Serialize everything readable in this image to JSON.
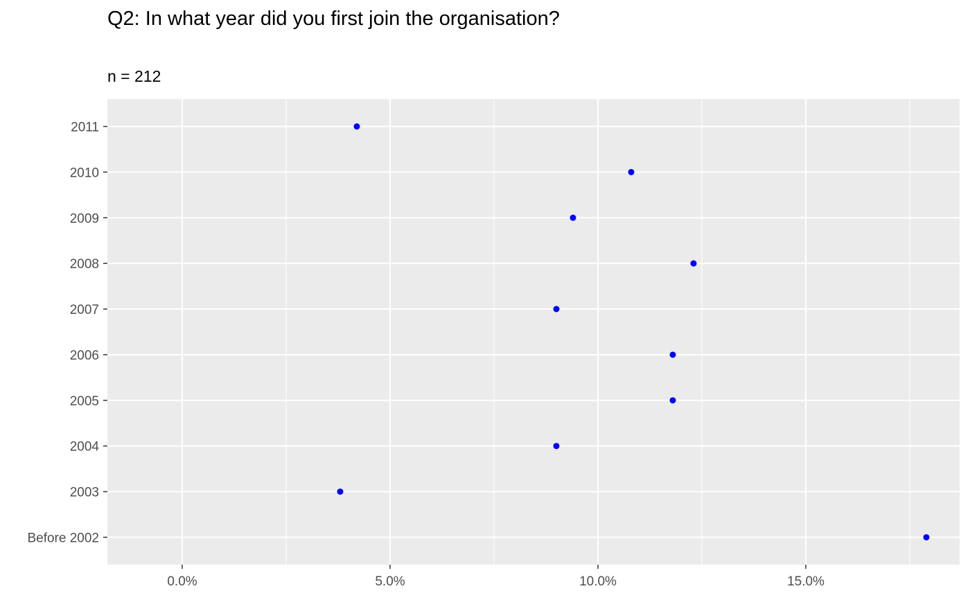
{
  "chart_data": {
    "type": "scatter",
    "title": "Q2: In what year did you first join the organisation?",
    "subtitle": "n = 212",
    "xlabel": "",
    "ylabel": "",
    "categories": [
      "Before 2002",
      "2003",
      "2004",
      "2005",
      "2006",
      "2007",
      "2008",
      "2009",
      "2010",
      "2011"
    ],
    "values": [
      17.9,
      3.8,
      9.0,
      11.8,
      11.8,
      9.0,
      12.3,
      9.4,
      10.8,
      4.2
    ],
    "xlim": [
      -1.8,
      18.7
    ],
    "xticks": [
      0,
      5,
      10,
      15
    ],
    "xtick_labels": [
      "0.0%",
      "5.0%",
      "10.0%",
      "15.0%"
    ],
    "grid": true,
    "colors": {
      "panel_background": "#ebebeb",
      "grid_line": "#ffffff",
      "point": "#0000ff"
    }
  }
}
